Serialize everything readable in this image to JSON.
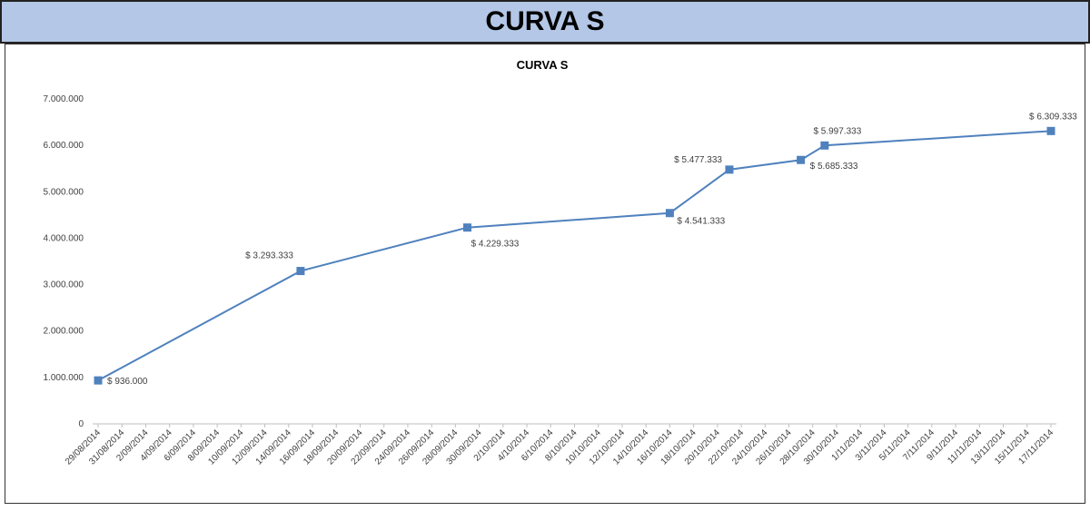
{
  "header": {
    "title": "CURVA S"
  },
  "chart_data": {
    "type": "line",
    "title": "CURVA S",
    "x": [
      "29/08/2014",
      "15/09/2014",
      "29/09/2014",
      "16/10/2014",
      "21/10/2014",
      "27/10/2014",
      "29/10/2014",
      "17/11/2014"
    ],
    "series": [
      {
        "name": "CURVA S",
        "color": "#4f81bd",
        "values": [
          936000,
          3293333,
          4229333,
          4541333,
          5477333,
          5685333,
          5997333,
          6309333
        ],
        "value_labels": [
          "$ 936.000",
          "$ 3.293.333",
          "$ 4.229.333",
          "$ 4.541.333",
          "$ 5.477.333",
          "$ 5.685.333",
          "$ 5.997.333",
          "$ 6.309.333"
        ]
      }
    ],
    "xlim": [
      "29/08/2014",
      "17/11/2014"
    ],
    "xticks": [
      "29/08/2014",
      "31/08/2014",
      "2/09/2014",
      "4/09/2014",
      "6/09/2014",
      "8/09/2014",
      "10/09/2014",
      "12/09/2014",
      "14/09/2014",
      "16/09/2014",
      "18/09/2014",
      "20/09/2014",
      "22/09/2014",
      "24/09/2014",
      "26/09/2014",
      "28/09/2014",
      "30/09/2014",
      "2/10/2014",
      "4/10/2014",
      "6/10/2014",
      "8/10/2014",
      "10/10/2014",
      "12/10/2014",
      "14/10/2014",
      "16/10/2014",
      "18/10/2014",
      "20/10/2014",
      "22/10/2014",
      "24/10/2014",
      "26/10/2014",
      "28/10/2014",
      "30/10/2014",
      "1/11/2014",
      "3/11/2014",
      "5/11/2014",
      "7/11/2014",
      "9/11/2014",
      "11/11/2014",
      "13/11/2014",
      "15/11/2014",
      "17/11/2014"
    ],
    "ylim": [
      0,
      7000000
    ],
    "yticks": [
      0,
      {
        "value": 1000000,
        "label": "1.000.000"
      },
      {
        "value": 2000000,
        "label": "2.000.000"
      },
      {
        "value": 3000000,
        "label": "3.000.000"
      },
      {
        "value": 4000000,
        "label": "4.000.000"
      },
      {
        "value": 5000000,
        "label": "5.000.000"
      },
      {
        "value": 6000000,
        "label": "6.000.000"
      },
      {
        "value": 7000000,
        "label": "7.000.000"
      }
    ],
    "grid": false
  }
}
